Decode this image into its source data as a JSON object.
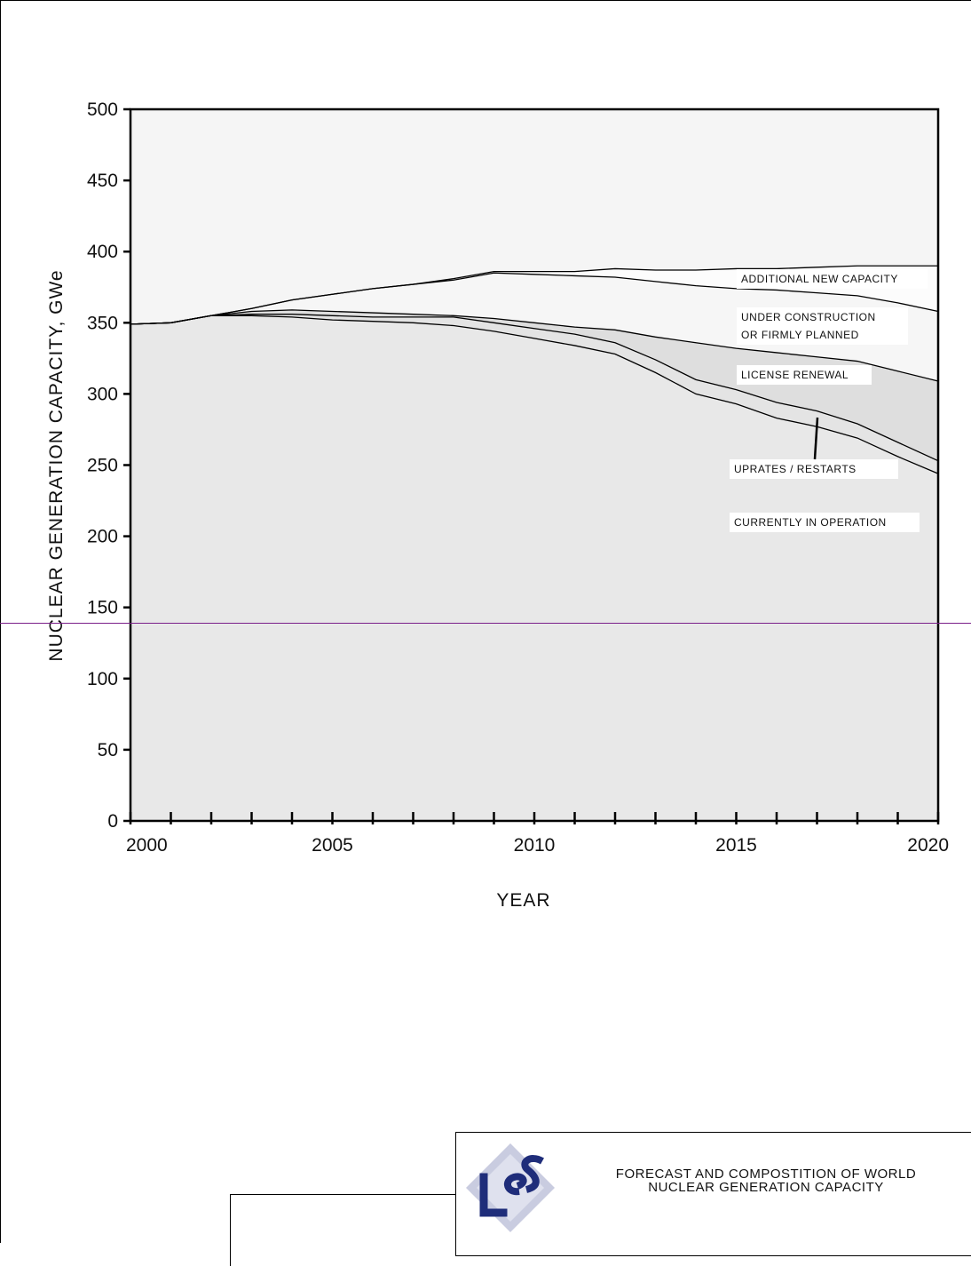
{
  "chart_data": {
    "type": "area",
    "xlabel": "YEAR",
    "ylabel": "NUCLEAR GENERATION CAPACITY, GWe",
    "xlim": [
      2000,
      2020
    ],
    "ylim": [
      0,
      500
    ],
    "x_ticks": [
      2000,
      2005,
      2010,
      2015,
      2020
    ],
    "y_ticks": [
      0,
      50,
      100,
      150,
      200,
      250,
      300,
      350,
      400,
      450,
      500
    ],
    "x": [
      2000,
      2001,
      2002,
      2003,
      2004,
      2005,
      2006,
      2007,
      2008,
      2009,
      2010,
      2011,
      2012,
      2013,
      2014,
      2015,
      2016,
      2017,
      2018,
      2019,
      2020
    ],
    "stacked": true,
    "series": [
      {
        "name": "CURRENTLY IN OPERATION",
        "cumulative": [
          349,
          350,
          355,
          355,
          354,
          352,
          351,
          350,
          348,
          344,
          339,
          334,
          328,
          315,
          300,
          293,
          283,
          277,
          269,
          256,
          244
        ]
      },
      {
        "name": "UPRATES / RESTARTS",
        "cumulative": [
          349,
          350,
          355,
          356,
          356,
          355,
          354,
          354,
          354,
          350,
          346,
          342,
          336,
          324,
          310,
          303,
          294,
          288,
          279,
          266,
          253
        ]
      },
      {
        "name": "LICENSE RENEWAL",
        "cumulative": [
          349,
          350,
          355,
          358,
          359,
          358,
          357,
          356,
          355,
          353,
          350,
          347,
          345,
          340,
          336,
          332,
          329,
          326,
          323,
          316,
          309
        ]
      },
      {
        "name": "UNDER CONSTRUCTION OR FIRMLY PLANNED",
        "cumulative": [
          349,
          350,
          355,
          360,
          366,
          370,
          374,
          377,
          380,
          385,
          384,
          383,
          382,
          379,
          376,
          374,
          373,
          371,
          369,
          364,
          358
        ]
      },
      {
        "name": "ADDITIONAL NEW CAPACITY",
        "cumulative": [
          349,
          350,
          355,
          360,
          366,
          370,
          374,
          377,
          381,
          386,
          386,
          386,
          388,
          387,
          387,
          388,
          388,
          389,
          390,
          390,
          390
        ]
      }
    ],
    "annotations": [
      {
        "text": "ADDITIONAL NEW CAPACITY"
      },
      {
        "text": "UNDER CONSTRUCTION"
      },
      {
        "text": "OR FIRMLY PLANNED"
      },
      {
        "text": "LICENSE RENEWAL"
      },
      {
        "text": "UPRATES / RESTARTS"
      },
      {
        "text": "CURRENTLY IN OPERATION"
      }
    ],
    "colors": {
      "plot_background": "#f5f5f5",
      "currently_in_operation": "#e8e8e8",
      "uprates_restarts": "#e4e4e4",
      "license_renewal": "#dedede",
      "under_construction": "#f6f6f6",
      "additional_new": "#fcfcfc",
      "line": "#000000"
    },
    "grid": false
  },
  "title_block": {
    "logo_text": "LES",
    "line1": "FORECAST  AND  COMPOSTITION  OF  WORLD",
    "line2": "NUCLEAR  GENERATION  CAPACITY"
  }
}
